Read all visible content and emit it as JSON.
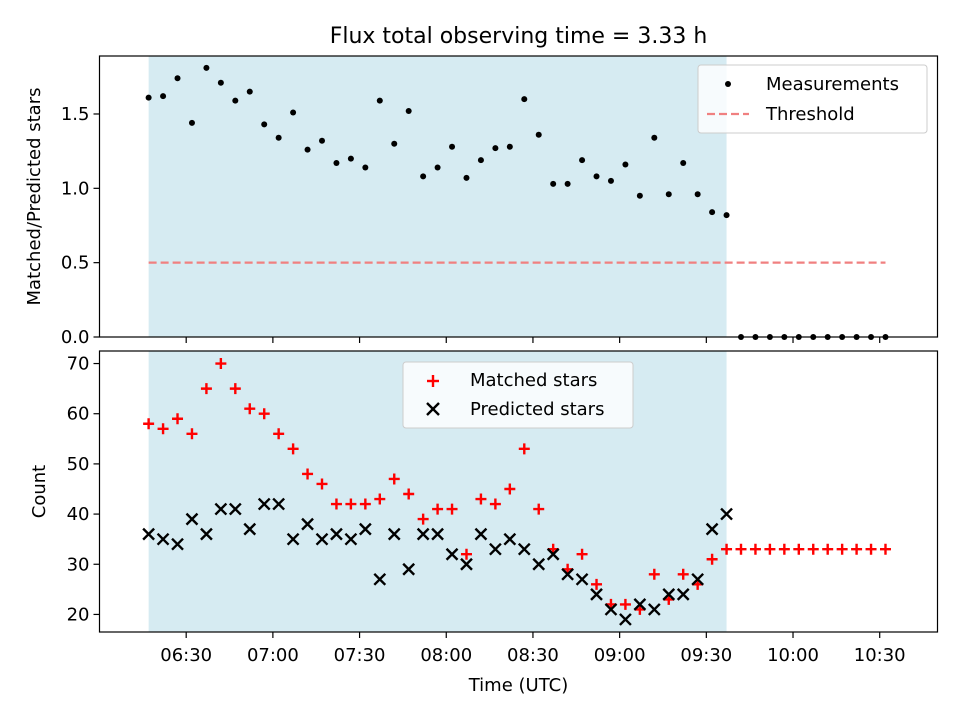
{
  "chart_data": [
    {
      "type": "scatter",
      "title": "Flux total observing time = 3.33 h",
      "xlabel": "",
      "ylabel": "Matched/Predicted stars",
      "ylim": [
        0,
        1.89
      ],
      "xlim": [
        "06:00",
        "10:50"
      ],
      "yticks": [
        "0.0",
        "0.5",
        "1.0",
        "1.5"
      ],
      "highlight_span": [
        "06:17",
        "09:37"
      ],
      "highlight_color": "#add8e6",
      "legend_position": "top-right",
      "series": [
        {
          "name": "Measurements",
          "marker": "dot",
          "color": "#000000",
          "x": [
            "06:17",
            "06:22",
            "06:27",
            "06:32",
            "06:37",
            "06:42",
            "06:47",
            "06:52",
            "06:57",
            "07:02",
            "07:07",
            "07:12",
            "07:17",
            "07:22",
            "07:27",
            "07:32",
            "07:37",
            "07:42",
            "07:47",
            "07:52",
            "07:57",
            "08:02",
            "08:07",
            "08:12",
            "08:17",
            "08:22",
            "08:27",
            "08:32",
            "08:37",
            "08:42",
            "08:47",
            "08:52",
            "08:57",
            "09:02",
            "09:07",
            "09:12",
            "09:17",
            "09:22",
            "09:27",
            "09:32",
            "09:37",
            "09:42",
            "09:47",
            "09:52",
            "09:57",
            "10:02",
            "10:07",
            "10:12",
            "10:17",
            "10:22",
            "10:27",
            "10:32"
          ],
          "y": [
            1.61,
            1.62,
            1.74,
            1.44,
            1.81,
            1.71,
            1.59,
            1.65,
            1.43,
            1.34,
            1.51,
            1.26,
            1.32,
            1.17,
            1.2,
            1.14,
            1.59,
            1.3,
            1.52,
            1.08,
            1.14,
            1.28,
            1.07,
            1.19,
            1.27,
            1.28,
            1.6,
            1.36,
            1.03,
            1.03,
            1.19,
            1.08,
            1.05,
            1.16,
            0.95,
            1.34,
            0.96,
            1.17,
            0.96,
            0.84,
            0.82,
            0,
            0,
            0,
            0,
            0,
            0,
            0,
            0,
            0,
            0,
            0
          ]
        },
        {
          "name": "Threshold",
          "style": "dashed",
          "color": "#f08080",
          "x": [
            "06:17",
            "10:32"
          ],
          "y": [
            0.5,
            0.5
          ]
        }
      ]
    },
    {
      "type": "scatter",
      "title": "",
      "xlabel": "Time (UTC)",
      "ylabel": "Count",
      "ylim": [
        16.5,
        72.5
      ],
      "xlim": [
        "06:00",
        "10:50"
      ],
      "yticks": [
        "20",
        "30",
        "40",
        "50",
        "60",
        "70"
      ],
      "xticks": [
        "06:30",
        "07:00",
        "07:30",
        "08:00",
        "08:30",
        "09:00",
        "09:30",
        "10:00",
        "10:30"
      ],
      "highlight_span": [
        "06:17",
        "09:37"
      ],
      "highlight_color": "#add8e6",
      "legend_position": "top-center",
      "series": [
        {
          "name": "Matched stars",
          "marker": "plus",
          "color": "#ff0000",
          "x": [
            "06:17",
            "06:22",
            "06:27",
            "06:32",
            "06:37",
            "06:42",
            "06:47",
            "06:52",
            "06:57",
            "07:02",
            "07:07",
            "07:12",
            "07:17",
            "07:22",
            "07:27",
            "07:32",
            "07:37",
            "07:42",
            "07:47",
            "07:52",
            "07:57",
            "08:02",
            "08:07",
            "08:12",
            "08:17",
            "08:22",
            "08:27",
            "08:32",
            "08:37",
            "08:42",
            "08:47",
            "08:52",
            "08:57",
            "09:02",
            "09:07",
            "09:12",
            "09:17",
            "09:22",
            "09:27",
            "09:32",
            "09:37",
            "09:42",
            "09:47",
            "09:52",
            "09:57",
            "10:02",
            "10:07",
            "10:12",
            "10:17",
            "10:22",
            "10:27",
            "10:32"
          ],
          "y": [
            58,
            57,
            59,
            56,
            65,
            70,
            65,
            61,
            60,
            56,
            53,
            48,
            46,
            42,
            42,
            42,
            43,
            47,
            44,
            39,
            41,
            41,
            32,
            43,
            42,
            45,
            53,
            41,
            33,
            29,
            32,
            26,
            22,
            22,
            21,
            28,
            23,
            28,
            26,
            31,
            33,
            33,
            33,
            33,
            33,
            33,
            33,
            33,
            33,
            33,
            33,
            33
          ]
        },
        {
          "name": "Predicted stars",
          "marker": "x",
          "color": "#000000",
          "x": [
            "06:17",
            "06:22",
            "06:27",
            "06:32",
            "06:37",
            "06:42",
            "06:47",
            "06:52",
            "06:57",
            "07:02",
            "07:07",
            "07:12",
            "07:17",
            "07:22",
            "07:27",
            "07:32",
            "07:37",
            "07:42",
            "07:47",
            "07:52",
            "07:57",
            "08:02",
            "08:07",
            "08:12",
            "08:17",
            "08:22",
            "08:27",
            "08:32",
            "08:37",
            "08:42",
            "08:47",
            "08:52",
            "08:57",
            "09:02",
            "09:07",
            "09:12",
            "09:17",
            "09:22",
            "09:27",
            "09:32",
            "09:37"
          ],
          "y": [
            36,
            35,
            34,
            39,
            36,
            41,
            41,
            37,
            42,
            42,
            35,
            38,
            35,
            36,
            35,
            37,
            27,
            36,
            29,
            36,
            36,
            32,
            30,
            36,
            33,
            35,
            33,
            30,
            32,
            28,
            27,
            24,
            21,
            19,
            22,
            21,
            24,
            24,
            27,
            37,
            40
          ]
        }
      ]
    }
  ]
}
